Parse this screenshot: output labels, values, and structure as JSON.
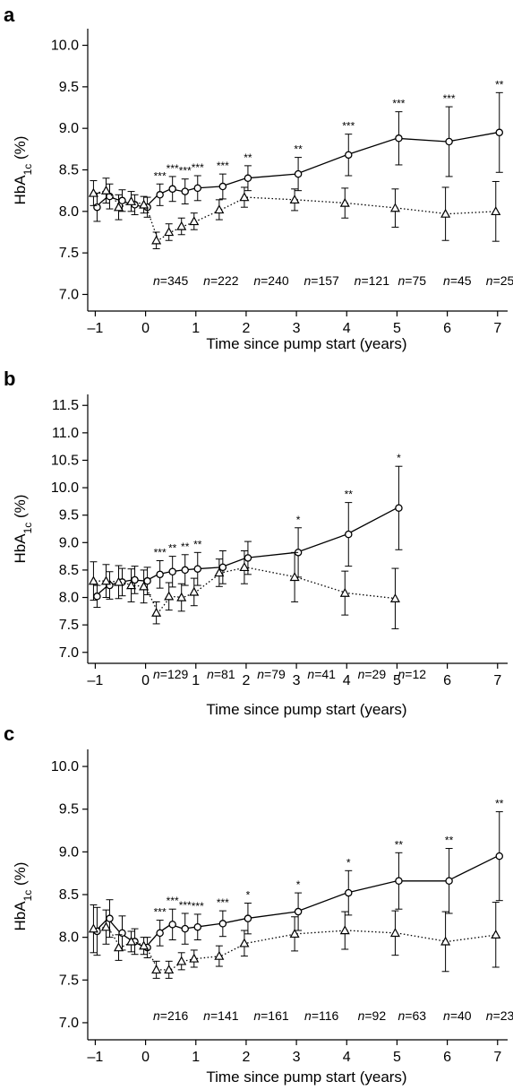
{
  "chart_data": [
    {
      "type": "line",
      "panel_label": "a",
      "xlabel": "Time since pump start (years)",
      "ylabel_main": "HbA",
      "ylabel_sub": "1c",
      "ylabel_unit": " (%)",
      "ylim": [
        6.8,
        10.2
      ],
      "xlim": [
        -1.15,
        7.2
      ],
      "yticks": [
        7.0,
        7.5,
        8.0,
        8.5,
        9.0,
        9.5,
        10.0
      ],
      "ytick_labels": [
        "7.0",
        "7.5",
        "8.0",
        "8.5",
        "9.0",
        "9.5",
        "10.0"
      ],
      "xticks": [
        -1,
        0,
        1,
        2,
        3,
        4,
        5,
        6,
        7
      ],
      "xtick_labels": [
        "–1",
        "0",
        "1",
        "2",
        "3",
        "4",
        "5",
        "6",
        "7"
      ],
      "series": [
        {
          "marker": "circle",
          "line": "solid",
          "x": [
            -1,
            -0.75,
            -0.5,
            -0.25,
            0,
            0.25,
            0.5,
            0.75,
            1,
            1.5,
            2,
            3,
            4,
            5,
            6,
            7
          ],
          "y": [
            8.05,
            8.18,
            8.13,
            8.08,
            8.05,
            8.2,
            8.27,
            8.24,
            8.28,
            8.3,
            8.4,
            8.45,
            8.68,
            8.88,
            8.84,
            8.95
          ],
          "err": [
            0.17,
            0.15,
            0.13,
            0.12,
            0.12,
            0.13,
            0.15,
            0.15,
            0.15,
            0.15,
            0.15,
            0.2,
            0.25,
            0.32,
            0.42,
            0.48
          ]
        },
        {
          "marker": "triangle",
          "line": "dotted",
          "x": [
            -1,
            -0.75,
            -0.5,
            -0.25,
            0,
            0.25,
            0.5,
            0.75,
            1,
            1.5,
            2,
            3,
            4,
            5,
            6,
            7
          ],
          "y": [
            8.22,
            8.25,
            8.05,
            8.12,
            8.08,
            7.65,
            7.75,
            7.82,
            7.88,
            8.02,
            8.17,
            8.14,
            8.1,
            8.04,
            7.97,
            8.0
          ],
          "err": [
            0.15,
            0.15,
            0.15,
            0.12,
            0.1,
            0.1,
            0.1,
            0.1,
            0.1,
            0.12,
            0.12,
            0.13,
            0.18,
            0.23,
            0.32,
            0.36
          ]
        }
      ],
      "stars": [
        {
          "x": 0.25,
          "label": "***"
        },
        {
          "x": 0.5,
          "label": "***"
        },
        {
          "x": 0.75,
          "label": "***"
        },
        {
          "x": 1,
          "label": "***"
        },
        {
          "x": 1.5,
          "label": "***"
        },
        {
          "x": 2,
          "label": "**"
        },
        {
          "x": 3,
          "label": "**"
        },
        {
          "x": 4,
          "label": "***"
        },
        {
          "x": 5,
          "label": "***"
        },
        {
          "x": 6,
          "label": "***"
        },
        {
          "x": 7,
          "label": "**"
        }
      ],
      "n_prefix": "n",
      "n_labels": [
        {
          "x": 0.5,
          "value": "=345"
        },
        {
          "x": 1.5,
          "value": "=222"
        },
        {
          "x": 2.5,
          "value": "=240"
        },
        {
          "x": 3.5,
          "value": "=157"
        },
        {
          "x": 4.5,
          "value": "=121"
        },
        {
          "x": 5.3,
          "value": "=75"
        },
        {
          "x": 6.2,
          "value": "=45"
        },
        {
          "x": 7.05,
          "value": "=25"
        }
      ]
    },
    {
      "type": "line",
      "panel_label": "b",
      "xlabel": "Time since pump start (years)",
      "ylabel_main": "HbA",
      "ylabel_sub": "1c",
      "ylabel_unit": " (%)",
      "ylim": [
        6.8,
        11.7
      ],
      "xlim": [
        -1.15,
        7.2
      ],
      "yticks": [
        7.0,
        7.5,
        8.0,
        8.5,
        9.0,
        9.5,
        10.0,
        10.5,
        11.0,
        11.5
      ],
      "ytick_labels": [
        "7.0",
        "7.5",
        "8.0",
        "8.5",
        "9.0",
        "9.5",
        "10.0",
        "10.5",
        "11.0",
        "11.5"
      ],
      "xticks": [
        -1,
        0,
        1,
        2,
        3,
        4,
        5,
        6,
        7
      ],
      "xtick_labels": [
        "–1",
        "0",
        "1",
        "2",
        "3",
        "4",
        "5",
        "6",
        "7"
      ],
      "series": [
        {
          "marker": "circle",
          "line": "solid",
          "x": [
            -1,
            -0.75,
            -0.5,
            -0.25,
            0,
            0.25,
            0.5,
            0.75,
            1,
            1.5,
            2,
            3,
            4,
            5
          ],
          "y": [
            8.02,
            8.22,
            8.28,
            8.32,
            8.3,
            8.42,
            8.47,
            8.5,
            8.52,
            8.55,
            8.72,
            8.82,
            9.15,
            9.63
          ],
          "err": [
            0.2,
            0.25,
            0.25,
            0.25,
            0.25,
            0.25,
            0.28,
            0.28,
            0.3,
            0.3,
            0.3,
            0.45,
            0.58,
            0.76
          ]
        },
        {
          "marker": "triangle",
          "line": "dotted",
          "x": [
            -1,
            -0.75,
            -0.5,
            -0.25,
            0,
            0.25,
            0.5,
            0.75,
            1,
            1.5,
            2,
            3,
            4,
            5
          ],
          "y": [
            8.3,
            8.3,
            8.28,
            8.22,
            8.2,
            7.72,
            8.02,
            8.0,
            8.1,
            8.45,
            8.55,
            8.37,
            8.08,
            7.98
          ],
          "err": [
            0.35,
            0.3,
            0.3,
            0.3,
            0.3,
            0.2,
            0.25,
            0.25,
            0.25,
            0.25,
            0.3,
            0.45,
            0.4,
            0.55
          ]
        }
      ],
      "stars": [
        {
          "x": 0.25,
          "label": "***"
        },
        {
          "x": 0.5,
          "label": "**"
        },
        {
          "x": 0.75,
          "label": "**"
        },
        {
          "x": 1,
          "label": "**"
        },
        {
          "x": 3,
          "label": "*"
        },
        {
          "x": 4,
          "label": "**"
        },
        {
          "x": 5,
          "label": "*"
        }
      ],
      "n_prefix": "n",
      "n_labels": [
        {
          "x": 0.5,
          "value": "=129"
        },
        {
          "x": 1.5,
          "value": "=81"
        },
        {
          "x": 2.5,
          "value": "=79"
        },
        {
          "x": 3.5,
          "value": "=41"
        },
        {
          "x": 4.5,
          "value": "=29"
        },
        {
          "x": 5.3,
          "value": "=12"
        }
      ]
    },
    {
      "type": "line",
      "panel_label": "c",
      "xlabel": "Time since pump start (years)",
      "ylabel_main": "HbA",
      "ylabel_sub": "1c",
      "ylabel_unit": " (%)",
      "ylim": [
        6.8,
        10.2
      ],
      "xlim": [
        -1.15,
        7.2
      ],
      "yticks": [
        7.0,
        7.5,
        8.0,
        8.5,
        9.0,
        9.5,
        10.0
      ],
      "ytick_labels": [
        "7.0",
        "7.5",
        "8.0",
        "8.5",
        "9.0",
        "9.5",
        "10.0"
      ],
      "xticks": [
        -1,
        0,
        1,
        2,
        3,
        4,
        5,
        6,
        7
      ],
      "xtick_labels": [
        "–1",
        "0",
        "1",
        "2",
        "3",
        "4",
        "5",
        "6",
        "7"
      ],
      "series": [
        {
          "marker": "circle",
          "line": "solid",
          "x": [
            -1,
            -0.75,
            -0.5,
            -0.25,
            0,
            0.25,
            0.5,
            0.75,
            1,
            1.5,
            2,
            3,
            4,
            5,
            6,
            7
          ],
          "y": [
            8.07,
            8.22,
            8.05,
            7.95,
            7.88,
            8.05,
            8.15,
            8.1,
            8.12,
            8.16,
            8.22,
            8.3,
            8.52,
            8.66,
            8.66,
            8.95
          ],
          "err": [
            0.28,
            0.22,
            0.2,
            0.15,
            0.12,
            0.15,
            0.18,
            0.18,
            0.15,
            0.15,
            0.18,
            0.22,
            0.26,
            0.33,
            0.38,
            0.52
          ]
        },
        {
          "marker": "triangle",
          "line": "dotted",
          "x": [
            -1,
            -0.75,
            -0.5,
            -0.25,
            0,
            0.25,
            0.5,
            0.75,
            1,
            1.5,
            2,
            3,
            4,
            5,
            6,
            7
          ],
          "y": [
            8.1,
            8.12,
            7.88,
            7.95,
            7.9,
            7.62,
            7.62,
            7.72,
            7.75,
            7.78,
            7.93,
            8.04,
            8.08,
            8.05,
            7.95,
            8.03
          ],
          "err": [
            0.28,
            0.2,
            0.15,
            0.12,
            0.1,
            0.1,
            0.1,
            0.1,
            0.1,
            0.12,
            0.15,
            0.2,
            0.22,
            0.26,
            0.35,
            0.38
          ]
        }
      ],
      "stars": [
        {
          "x": 0.25,
          "label": "***"
        },
        {
          "x": 0.5,
          "label": "***"
        },
        {
          "x": 0.75,
          "label": "***"
        },
        {
          "x": 1,
          "label": "***"
        },
        {
          "x": 1.5,
          "label": "***"
        },
        {
          "x": 2,
          "label": "*"
        },
        {
          "x": 3,
          "label": "*"
        },
        {
          "x": 4,
          "label": "*"
        },
        {
          "x": 5,
          "label": "**"
        },
        {
          "x": 6,
          "label": "**"
        },
        {
          "x": 7,
          "label": "**"
        }
      ],
      "n_prefix": "n",
      "n_labels": [
        {
          "x": 0.5,
          "value": "=216"
        },
        {
          "x": 1.5,
          "value": "=141"
        },
        {
          "x": 2.5,
          "value": "=161"
        },
        {
          "x": 3.5,
          "value": "=116"
        },
        {
          "x": 4.5,
          "value": "=92"
        },
        {
          "x": 5.3,
          "value": "=63"
        },
        {
          "x": 6.2,
          "value": "=40"
        },
        {
          "x": 7.05,
          "value": "=23"
        }
      ]
    }
  ]
}
